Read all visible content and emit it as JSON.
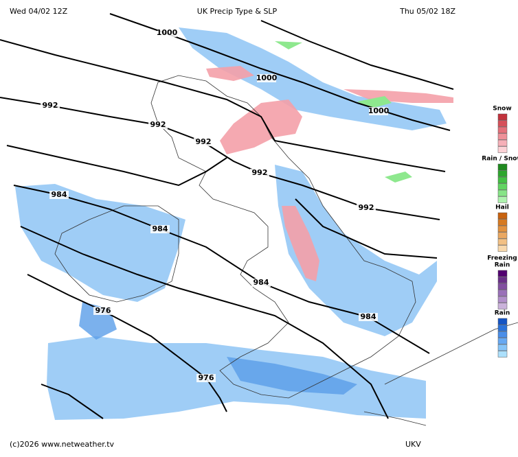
{
  "header": {
    "left": "Wed 04/02 12Z",
    "title": "UK Precip Type & SLP",
    "right": "Thu 05/02 18Z"
  },
  "isobar_labels": [
    1000,
    1000,
    1000,
    992,
    992,
    992,
    992,
    992,
    984,
    984,
    984,
    984,
    976,
    976
  ],
  "legend": [
    {
      "lines": [
        "Snow"
      ],
      "colors": [
        "#c2323c",
        "#d6505a",
        "#e4707a",
        "#ee9098",
        "#f6b0b8",
        "#fcd2d6"
      ]
    },
    {
      "lines": [
        "Rain / Snow"
      ],
      "colors": [
        "#1f8a1f",
        "#2ea62e",
        "#44c044",
        "#62d462",
        "#86e486",
        "#aef2ae"
      ]
    },
    {
      "lines": [
        "Hail"
      ],
      "colors": [
        "#c8620e",
        "#d67a22",
        "#e29240",
        "#eaa862",
        "#f2c084",
        "#f8d8ac"
      ]
    },
    {
      "lines": [
        "Freezing",
        "Rain"
      ],
      "colors": [
        "#520070",
        "#6a3088",
        "#8250a0",
        "#9a70b8",
        "#b290ca",
        "#cab2da"
      ]
    },
    {
      "lines": [
        "Rain"
      ],
      "colors": [
        "#1454c4",
        "#2a72da",
        "#4a8ee8",
        "#66a8f2",
        "#86c4f8",
        "#ace0fc"
      ]
    }
  ],
  "footer": {
    "left": "(c)2026 www.netweather.tv",
    "right": "UKV"
  }
}
